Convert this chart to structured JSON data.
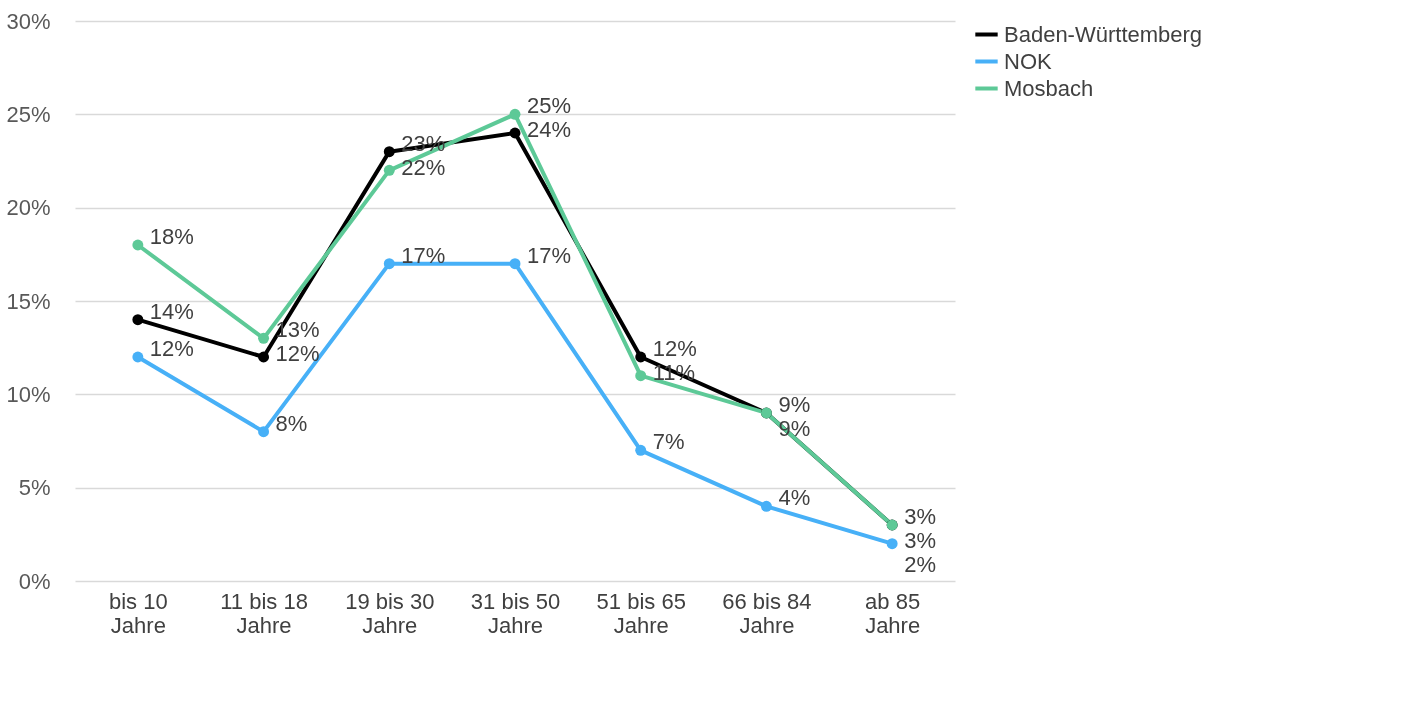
{
  "chart_data": {
    "type": "line",
    "categories": [
      "bis 10 Jahre",
      "11 bis 18 Jahre",
      "19 bis 30 Jahre",
      "31 bis 50 Jahre",
      "51 bis 65 Jahre",
      "66 bis 84 Jahre",
      "ab 85 Jahre"
    ],
    "series": [
      {
        "name": "Baden-Württemberg",
        "color": "#000000",
        "values": [
          14,
          12,
          23,
          24,
          12,
          9,
          3
        ],
        "value_labels": [
          "14%",
          "12%",
          "23%",
          "24%",
          "12%",
          "9%",
          "3%"
        ]
      },
      {
        "name": "NOK",
        "color": "#47b0f7",
        "values": [
          12,
          8,
          17,
          17,
          7,
          4,
          2
        ],
        "value_labels": [
          "12%",
          "8%",
          "17%",
          "17%",
          "7%",
          "4%",
          "2%"
        ]
      },
      {
        "name": "Mosbach",
        "color": "#5dc997",
        "values": [
          18,
          13,
          22,
          25,
          11,
          9,
          3
        ],
        "value_labels": [
          "18%",
          "13%",
          "22%",
          "25%",
          "11%",
          "9%",
          "3%"
        ]
      }
    ],
    "ylim": [
      0,
      30
    ],
    "yticks": [
      {
        "value": 0,
        "label": "0%"
      },
      {
        "value": 5,
        "label": "5%"
      },
      {
        "value": 10,
        "label": "10%"
      },
      {
        "value": 15,
        "label": "15%"
      },
      {
        "value": 20,
        "label": "20%"
      },
      {
        "value": 25,
        "label": "25%"
      },
      {
        "value": 30,
        "label": "30%"
      }
    ],
    "grid": "y",
    "legend": "right",
    "marker": "circle",
    "line_style": "solid"
  }
}
